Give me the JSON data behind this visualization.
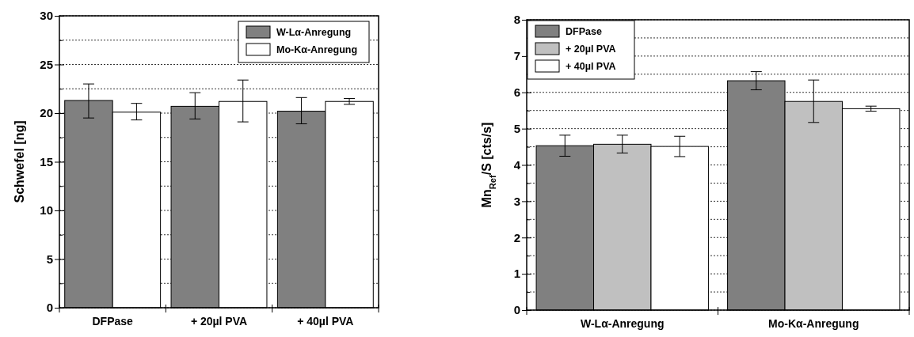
{
  "chart_data": [
    {
      "type": "bar",
      "ylabel": "Schwefel [ng]",
      "categories": [
        "DFPase",
        "+ 20µl PVA",
        "+ 40µl PVA"
      ],
      "series": [
        {
          "name": "W-Lα-Anregung",
          "color": "#808080",
          "values": [
            21.3,
            20.7,
            20.2
          ],
          "errors": [
            [
              19.5,
              23.0
            ],
            [
              19.4,
              22.1
            ],
            [
              18.9,
              21.6
            ]
          ]
        },
        {
          "name": "Mo-Kα-Anregung",
          "color": "#ffffff",
          "values": [
            20.1,
            21.2,
            21.2
          ],
          "errors": [
            [
              19.3,
              21.0
            ],
            [
              19.1,
              23.4
            ],
            [
              20.9,
              21.5
            ]
          ]
        }
      ],
      "ylim": [
        0,
        30
      ],
      "yticks": [
        0,
        {
          "value": 2.5,
          "label": null
        },
        5,
        {
          "value": 7.5,
          "label": null
        },
        10,
        {
          "value": 12.5,
          "label": null
        },
        15,
        {
          "value": 17.5,
          "label": null
        },
        20,
        {
          "value": 22.5,
          "label": null
        },
        25,
        {
          "value": 27.5,
          "label": null
        },
        30
      ],
      "grid": "y",
      "legend": "top right"
    },
    {
      "type": "bar",
      "ylabel": "Mn$_{Ref}$/S [cts/s]",
      "categories": [
        "W-Lα-Anregung",
        "Mo-Kα-Anregung"
      ],
      "series": [
        {
          "name": "DFPase",
          "color": "#808080",
          "values": [
            4.53,
            6.32
          ],
          "errors": [
            [
              4.24,
              4.82
            ],
            [
              6.07,
              6.57
            ]
          ]
        },
        {
          "name": "+ 20µl PVA",
          "color": "#c0c0c0",
          "values": [
            4.57,
            5.75
          ],
          "errors": [
            [
              4.33,
              4.82
            ],
            [
              5.17,
              6.34
            ]
          ]
        },
        {
          "name": "+ 40µl PVA",
          "color": "#ffffff",
          "values": [
            4.51,
            5.55
          ],
          "errors": [
            [
              4.23,
              4.79
            ],
            [
              5.48,
              5.62
            ]
          ]
        }
      ],
      "ylim": [
        0,
        8
      ],
      "yticks": [
        0,
        {
          "value": 0.5,
          "label": null
        },
        1,
        {
          "value": 1.5,
          "label": null
        },
        2,
        {
          "value": 2.5,
          "label": null
        },
        3,
        {
          "value": 3.5,
          "label": null
        },
        4,
        {
          "value": 4.5,
          "label": null
        },
        5,
        {
          "value": 5.5,
          "label": null
        },
        6,
        {
          "value": 6.5,
          "label": null
        },
        7,
        {
          "value": 7.5,
          "label": null
        },
        8
      ],
      "grid": "y",
      "legend": "top left"
    }
  ]
}
